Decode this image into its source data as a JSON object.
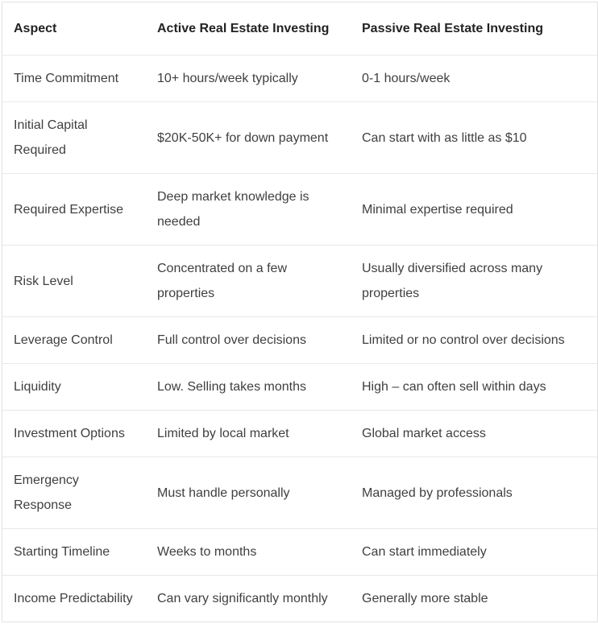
{
  "table": {
    "columns": [
      "Aspect",
      "Active Real Estate Investing",
      "Passive Real Estate Investing"
    ],
    "rows": [
      {
        "aspect": "Time Commitment",
        "active": "10+ hours/week typically",
        "passive": "0-1 hours/week"
      },
      {
        "aspect": "Initial Capital Required",
        "active": "$20K-50K+ for down payment",
        "passive": "Can start with as little as $10"
      },
      {
        "aspect": "Required Expertise",
        "active": "Deep market knowledge is needed",
        "passive": "Minimal expertise required"
      },
      {
        "aspect": "Risk Level",
        "active": "Concentrated on a few properties",
        "passive": "Usually diversified across many properties"
      },
      {
        "aspect": "Leverage Control",
        "active": "Full control over decisions",
        "passive": "Limited or no control over decisions"
      },
      {
        "aspect": "Liquidity",
        "active": "Low. Selling takes months",
        "passive": "High – can often sell within days"
      },
      {
        "aspect": "Investment Options",
        "active": "Limited by local market",
        "passive": "Global market access"
      },
      {
        "aspect": "Emergency Response",
        "active": "Must handle personally",
        "passive": "Managed by professionals"
      },
      {
        "aspect": "Starting Timeline",
        "active": "Weeks to months",
        "passive": "Can start immediately"
      },
      {
        "aspect": "Income Predictability",
        "active": "Can vary significantly monthly",
        "passive": "Generally more stable"
      }
    ],
    "colors": {
      "background": "#ffffff",
      "outer_border": "#e2e2e2",
      "row_divider": "#e9e9e9",
      "header_text": "#232323",
      "body_text": "#3f3f3f"
    }
  }
}
